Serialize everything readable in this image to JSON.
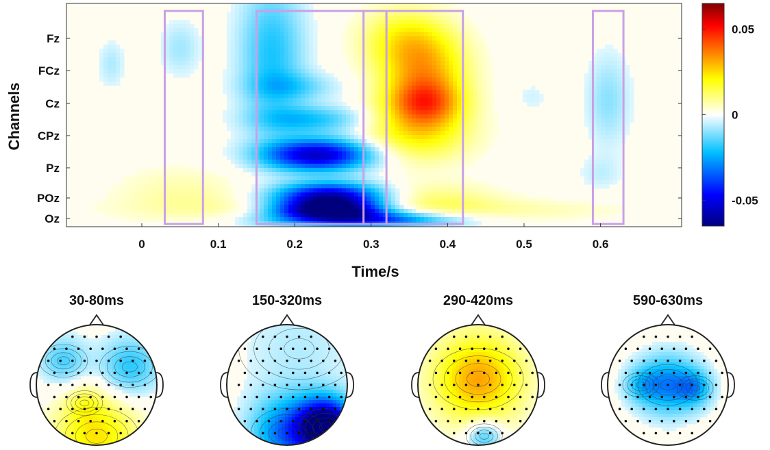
{
  "chart_data": [
    {
      "type": "heatmap",
      "title": "",
      "xlabel": "Time/s",
      "ylabel": "Channels",
      "xlim": [
        -0.1,
        0.7
      ],
      "xticks": [
        0,
        0.1,
        0.2,
        0.3,
        0.4,
        0.5,
        0.6
      ],
      "xtick_labels": [
        "0",
        "0.1",
        "0.2",
        "0.3",
        "0.4",
        "0.5",
        "0.6"
      ],
      "channels": [
        "Fz",
        "FCz",
        "Cz",
        "CPz",
        "Pz",
        "POz",
        "Oz"
      ],
      "colorbar": {
        "range": [
          -0.065,
          0.065
        ],
        "ticks": [
          0.05,
          0,
          -0.05
        ],
        "tick_labels": [
          "0.05",
          "0",
          "-0.05"
        ],
        "colors": [
          "#00007f",
          "#0000ff",
          "#00bfff",
          "#ffffff",
          "#ffff00",
          "#ff8000",
          "#ff0000",
          "#7f0000"
        ]
      },
      "highlight_windows": [
        {
          "start": 0.03,
          "end": 0.08
        },
        {
          "start": 0.15,
          "end": 0.32
        },
        {
          "start": 0.29,
          "end": 0.42
        },
        {
          "start": 0.59,
          "end": 0.63
        }
      ],
      "highlight_color": "#c9a0e6",
      "effects": [
        {
          "t": 0.05,
          "ch": 0.3,
          "dt": 0.018,
          "dch": 0.6,
          "value": -0.008
        },
        {
          "t": -0.04,
          "ch": 0.8,
          "dt": 0.012,
          "dch": 0.5,
          "value": -0.007
        },
        {
          "t": 0.05,
          "ch": 4.7,
          "dt": 0.06,
          "dch": 0.6,
          "value": 0.006
        },
        {
          "t": 0.12,
          "ch": 5.6,
          "dt": 0.12,
          "dch": 0.5,
          "value": 0.007
        },
        {
          "t": 0.17,
          "ch": 0.5,
          "dt": 0.03,
          "dch": 1.6,
          "value": -0.02
        },
        {
          "t": 0.23,
          "ch": 3.6,
          "dt": 0.05,
          "dch": 0.35,
          "value": -0.055
        },
        {
          "t": 0.245,
          "ch": 5.0,
          "dt": 0.05,
          "dch": 0.35,
          "value": -0.06
        },
        {
          "t": 0.245,
          "ch": 5.6,
          "dt": 0.05,
          "dch": 0.3,
          "value": -0.064
        },
        {
          "t": 0.28,
          "ch": 6.1,
          "dt": 0.08,
          "dch": 0.3,
          "value": -0.045
        },
        {
          "t": 0.22,
          "ch": 2.5,
          "dt": 0.05,
          "dch": 0.3,
          "value": -0.02
        },
        {
          "t": 0.2,
          "ch": 1.5,
          "dt": 0.04,
          "dch": 0.3,
          "value": -0.012
        },
        {
          "t": 0.37,
          "ch": 1.0,
          "dt": 0.04,
          "dch": 0.9,
          "value": 0.028
        },
        {
          "t": 0.37,
          "ch": 2.0,
          "dt": 0.035,
          "dch": 0.5,
          "value": 0.03
        },
        {
          "t": 0.36,
          "ch": 3.0,
          "dt": 0.05,
          "dch": 0.6,
          "value": 0.02
        },
        {
          "t": 0.34,
          "ch": 0.0,
          "dt": 0.04,
          "dch": 0.7,
          "value": 0.015
        },
        {
          "t": 0.38,
          "ch": 5.2,
          "dt": 0.06,
          "dch": 0.5,
          "value": 0.012
        },
        {
          "t": 0.5,
          "ch": 5.6,
          "dt": 0.1,
          "dch": 0.4,
          "value": 0.006
        },
        {
          "t": 0.61,
          "ch": 1.9,
          "dt": 0.02,
          "dch": 1.0,
          "value": -0.01
        },
        {
          "t": 0.6,
          "ch": 4.2,
          "dt": 0.02,
          "dch": 0.4,
          "value": -0.005
        },
        {
          "t": 0.51,
          "ch": 1.8,
          "dt": 0.015,
          "dch": 0.3,
          "value": -0.004
        }
      ]
    },
    {
      "type": "topoplot",
      "maps": [
        {
          "title": "30-80ms",
          "blobs": [
            {
              "x": 0.0,
              "y": -0.85,
              "r": 0.7,
              "value": 0.015
            },
            {
              "x": -0.55,
              "y": 0.4,
              "r": 0.4,
              "value": -0.01
            },
            {
              "x": 0.55,
              "y": 0.3,
              "r": 0.5,
              "value": -0.012
            },
            {
              "x": -0.2,
              "y": -0.3,
              "r": 0.3,
              "value": 0.005
            }
          ]
        },
        {
          "title": "150-320ms",
          "blobs": [
            {
              "x": 0.65,
              "y": -0.7,
              "r": 0.45,
              "value": -0.045
            },
            {
              "x": 0.0,
              "y": -0.8,
              "r": 0.6,
              "value": -0.02
            },
            {
              "x": 0.2,
              "y": 0.6,
              "r": 1.0,
              "value": -0.004
            }
          ]
        },
        {
          "title": "290-420ms",
          "blobs": [
            {
              "x": 0.0,
              "y": 0.1,
              "r": 0.75,
              "value": 0.02
            },
            {
              "x": 0.1,
              "y": -0.85,
              "r": 0.3,
              "value": -0.012
            }
          ]
        },
        {
          "title": "590-630ms",
          "blobs": [
            {
              "x": 0.0,
              "y": 0.0,
              "r": 0.5,
              "value": -0.018
            },
            {
              "x": 0.45,
              "y": -0.05,
              "r": 0.3,
              "value": -0.012
            },
            {
              "x": -0.45,
              "y": 0.0,
              "r": 0.3,
              "value": -0.008
            }
          ]
        }
      ]
    }
  ]
}
